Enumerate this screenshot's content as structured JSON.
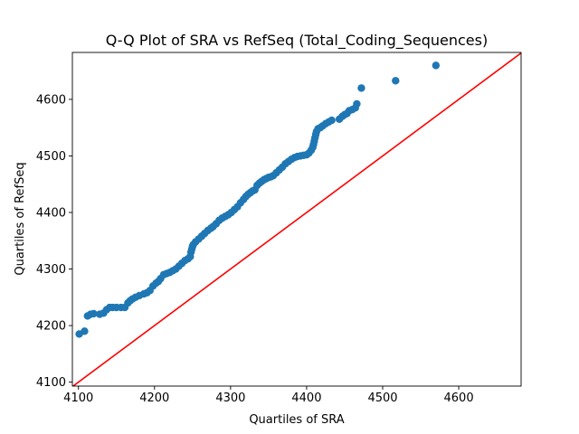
{
  "chart_data": {
    "type": "scatter",
    "title": "Q-Q Plot of SRA vs RefSeq (Total_Coding_Sequences)",
    "xlabel": "Quartiles of SRA",
    "ylabel": "Quartiles of RefSeq",
    "xlim": [
      4092,
      4682
    ],
    "ylim": [
      4093,
      4683
    ],
    "xticks": [
      4100,
      4200,
      4300,
      4400,
      4500,
      4600
    ],
    "yticks": [
      4100,
      4200,
      4300,
      4400,
      4500,
      4600
    ],
    "grid": false,
    "legend": "none",
    "marker_color": "#1f77b4",
    "reference_line": {
      "color": "#ff0000",
      "x": [
        4092,
        4682
      ],
      "y": [
        4092,
        4682
      ]
    },
    "series": [
      {
        "x": [
          4101,
          4108,
          4112,
          4116,
          4120,
          4128,
          4133,
          4137,
          4141,
          4145,
          4150,
          4156,
          4161,
          4165,
          4168,
          4171,
          4175,
          4180,
          4186,
          4190,
          4194,
          4198,
          4202,
          4205,
          4208,
          4212,
          4216,
          4220,
          4224,
          4228,
          4232,
          4236,
          4240,
          4244,
          4247,
          4248,
          4249,
          4250,
          4251,
          4254,
          4258,
          4262,
          4266,
          4270,
          4274,
          4277,
          4281,
          4285,
          4289,
          4293,
          4297,
          4301,
          4305,
          4309,
          4313,
          4317,
          4320,
          4323,
          4326,
          4329,
          4332,
          4335,
          4338,
          4341,
          4344,
          4347,
          4350,
          4353,
          4356,
          4360,
          4364,
          4368,
          4372,
          4376,
          4380,
          4384,
          4388,
          4392,
          4396,
          4400,
          4403,
          4406,
          4408,
          4409,
          4410,
          4411,
          4412,
          4413,
          4415,
          4418,
          4421,
          4425,
          4429,
          4433,
          4443,
          4447,
          4450,
          4453,
          4456,
          4460,
          4464,
          4466,
          4472,
          4517,
          4570
        ],
        "y": [
          4185,
          4190,
          4217,
          4220,
          4221,
          4220,
          4222,
          4228,
          4232,
          4232,
          4232,
          4232,
          4232,
          4240,
          4244,
          4247,
          4250,
          4253,
          4256,
          4258,
          4262,
          4270,
          4275,
          4278,
          4283,
          4290,
          4292,
          4294,
          4297,
          4300,
          4305,
          4310,
          4315,
          4318,
          4322,
          4330,
          4335,
          4340,
          4343,
          4348,
          4353,
          4358,
          4363,
          4368,
          4372,
          4375,
          4380,
          4386,
          4390,
          4393,
          4396,
          4400,
          4405,
          4410,
          4417,
          4423,
          4428,
          4432,
          4435,
          4438,
          4440,
          4448,
          4452,
          4455,
          4458,
          4460,
          4462,
          4463,
          4465,
          4470,
          4475,
          4480,
          4486,
          4490,
          4494,
          4497,
          4499,
          4500,
          4501,
          4502,
          4505,
          4510,
          4515,
          4520,
          4526,
          4532,
          4538,
          4543,
          4548,
          4550,
          4553,
          4557,
          4560,
          4563,
          4565,
          4570,
          4573,
          4575,
          4580,
          4582,
          4585,
          4592,
          4620,
          4633,
          4660
        ]
      }
    ]
  }
}
